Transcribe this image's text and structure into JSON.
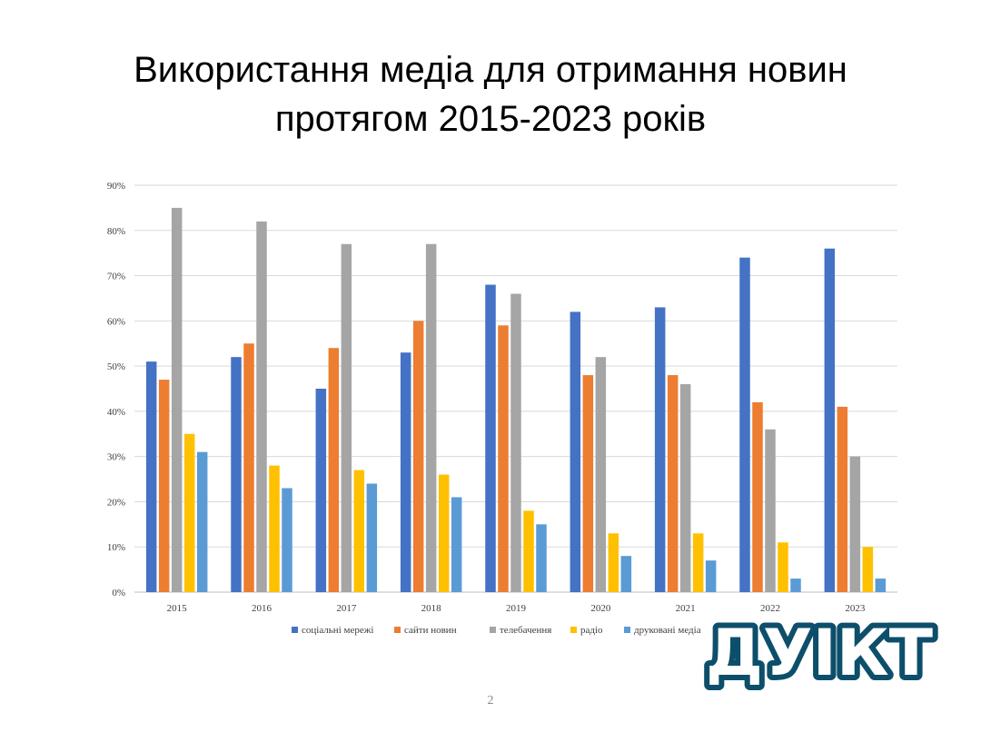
{
  "slide": {
    "title_line1": "Використання медіа для отримання новин",
    "title_line2": "протягом 2015-2023 років",
    "page_number": "2",
    "logo_text": "ДУІКТ",
    "logo_colors": {
      "fill": "#ffffff",
      "stroke": "#0d4f6b"
    }
  },
  "chart_data": {
    "type": "bar",
    "categories": [
      "2015",
      "2016",
      "2017",
      "2018",
      "2019",
      "2020",
      "2021",
      "2022",
      "2023"
    ],
    "series": [
      {
        "name": "соціальні мережі",
        "color": "#4472C4",
        "values": [
          51,
          52,
          45,
          53,
          68,
          62,
          63,
          74,
          76
        ]
      },
      {
        "name": "сайти новин",
        "color": "#ED7D31",
        "values": [
          47,
          55,
          54,
          60,
          59,
          48,
          48,
          42,
          41
        ]
      },
      {
        "name": "телебачення",
        "color": "#A5A5A5",
        "values": [
          85,
          82,
          77,
          77,
          66,
          52,
          46,
          36,
          30
        ]
      },
      {
        "name": "радіо",
        "color": "#FFC000",
        "values": [
          35,
          28,
          27,
          26,
          18,
          13,
          13,
          11,
          10
        ]
      },
      {
        "name": "друковані медіа",
        "color": "#5B9BD5",
        "values": [
          31,
          23,
          24,
          21,
          15,
          8,
          7,
          3,
          3
        ]
      }
    ],
    "yticks": [
      "0%",
      "10%",
      "20%",
      "30%",
      "40%",
      "50%",
      "60%",
      "70%",
      "80%",
      "90%"
    ],
    "ylim": [
      0,
      90
    ],
    "ystep": 10,
    "grid": true,
    "legend_position": "bottom"
  }
}
